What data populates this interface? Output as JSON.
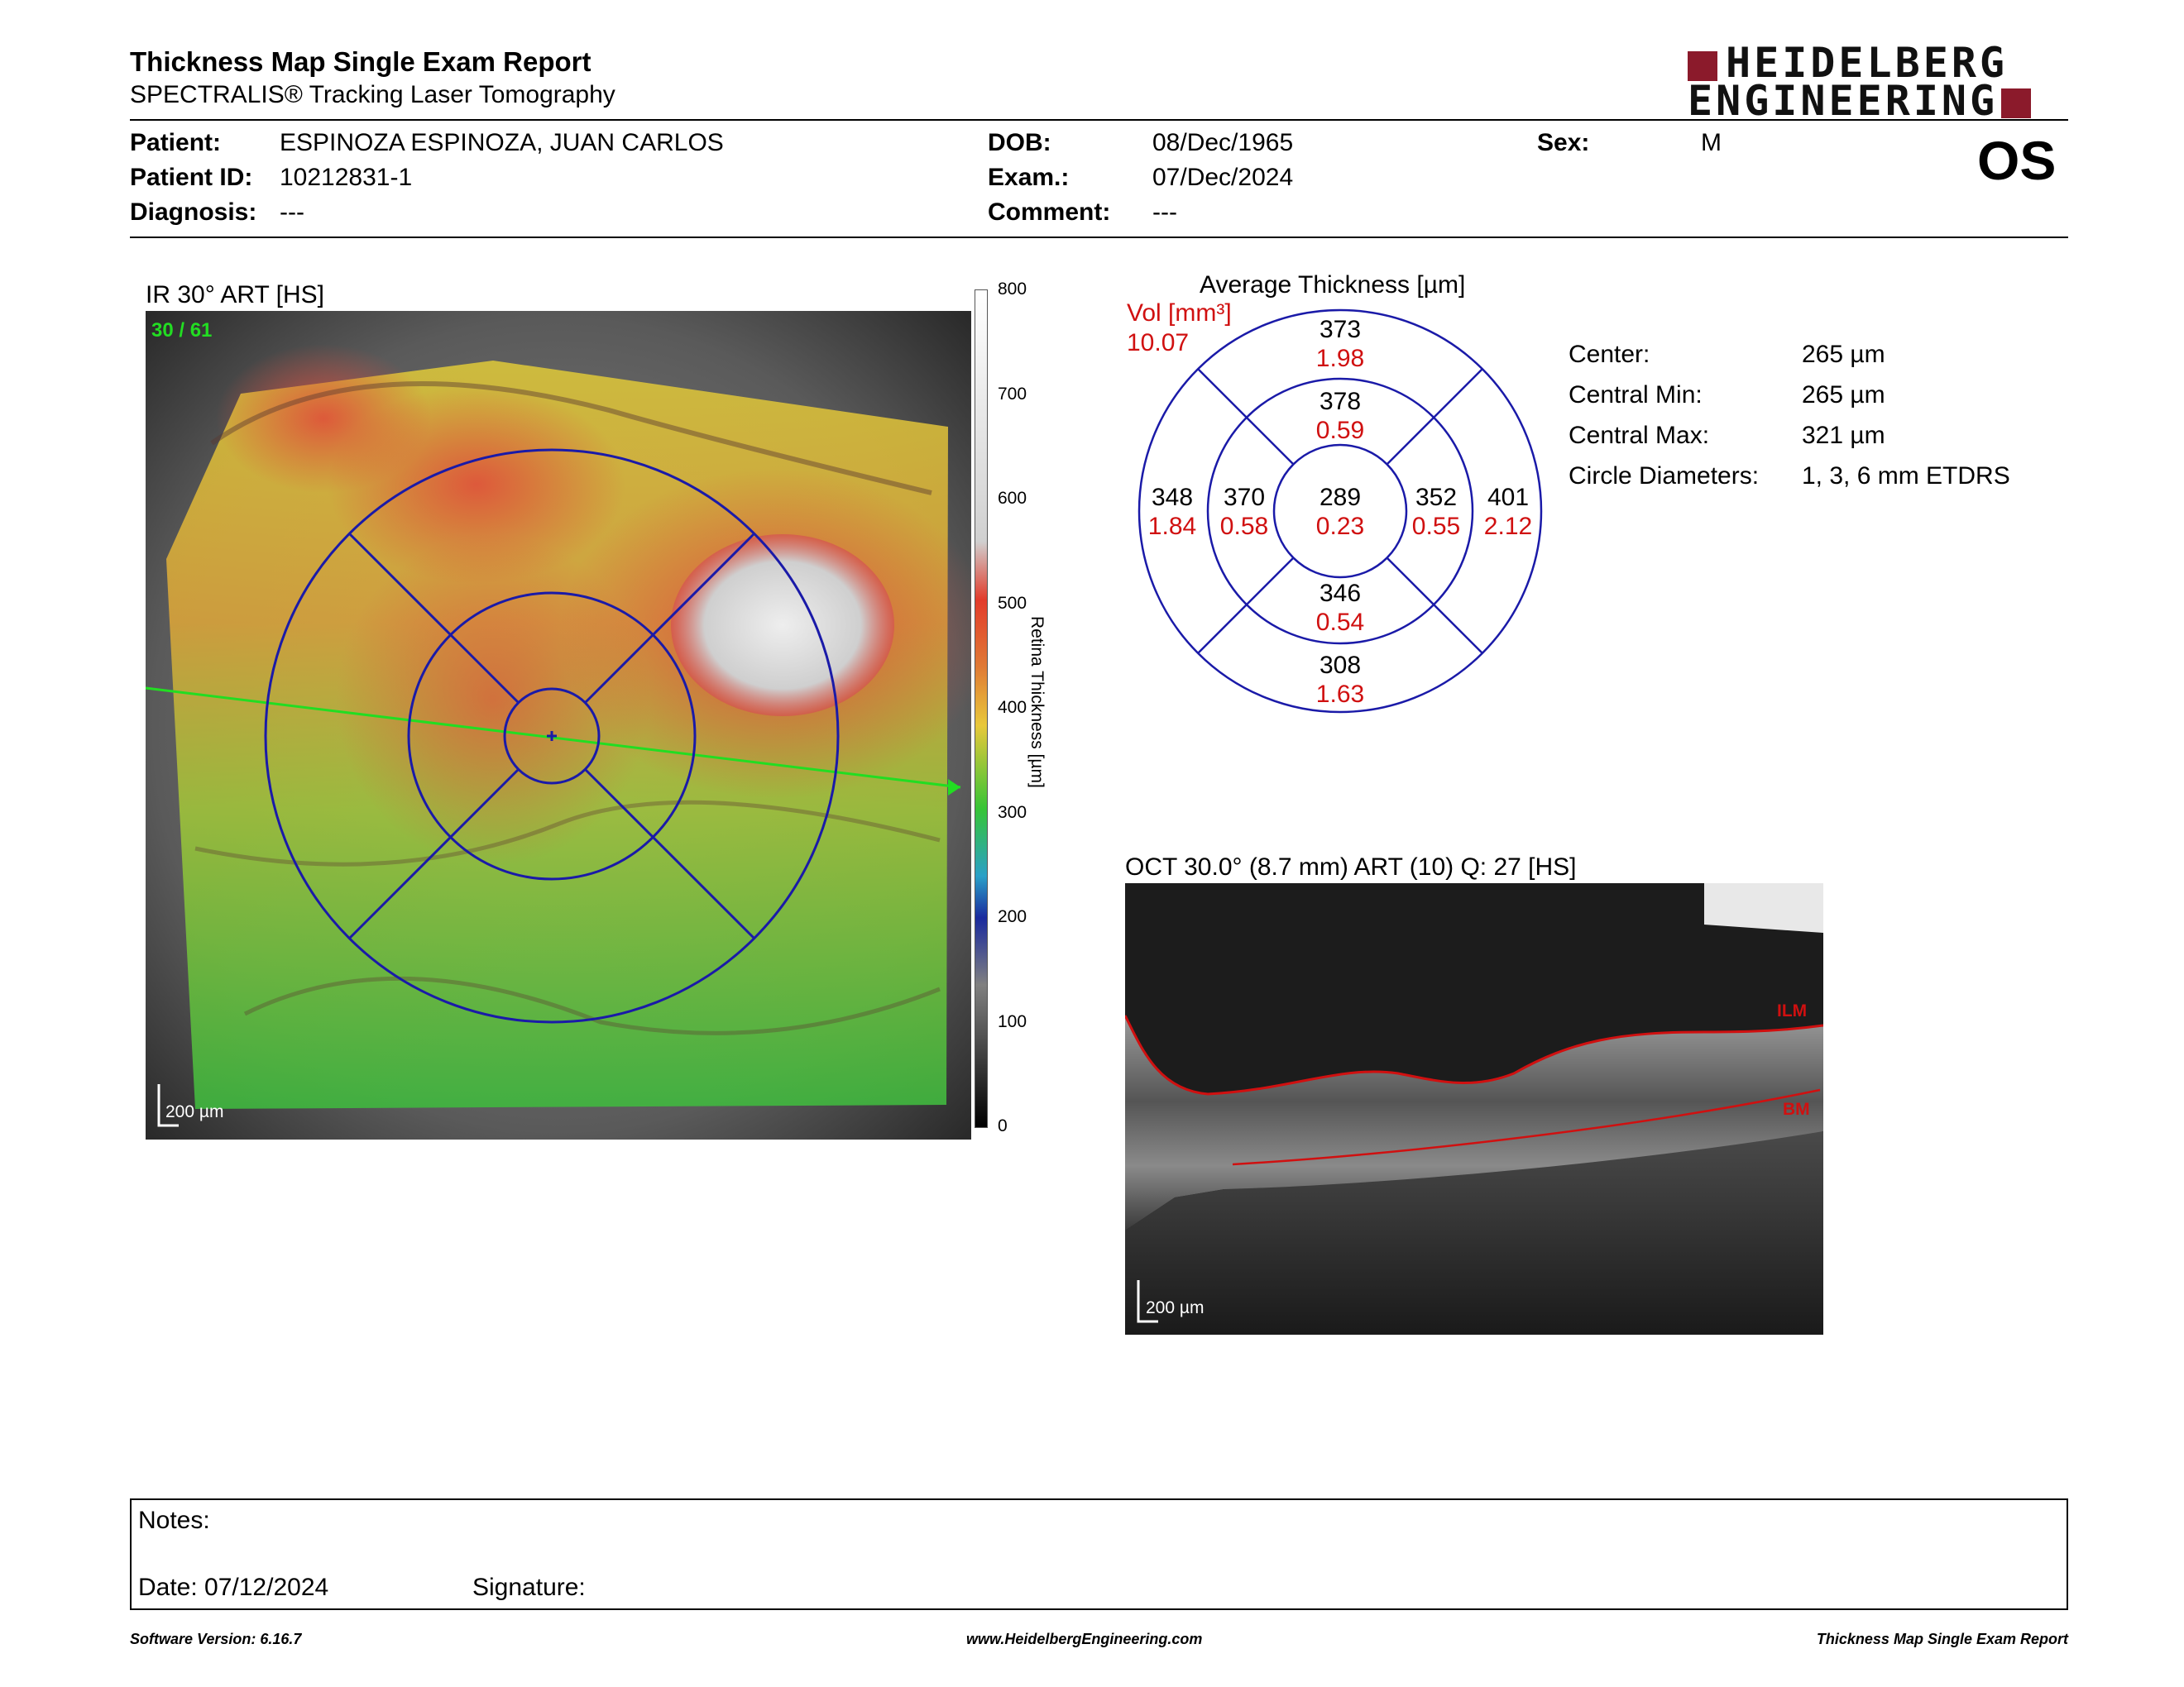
{
  "header": {
    "title": "Thickness Map Single Exam Report",
    "subtitle": "SPECTRALIS® Tracking Laser Tomography",
    "logo_line1": "HEIDELBERG",
    "logo_line2": "ENGINEERING",
    "eye": "OS"
  },
  "patient": {
    "patient_label": "Patient:",
    "patient_value": "ESPINOZA ESPINOZA, JUAN CARLOS",
    "id_label": "Patient ID:",
    "id_value": "10212831-1",
    "diagnosis_label": "Diagnosis:",
    "diagnosis_value": "---",
    "dob_label": "DOB:",
    "dob_value": "08/Dec/1965",
    "exam_label": "Exam.:",
    "exam_value": "07/Dec/2024",
    "comment_label": "Comment:",
    "comment_value": "---",
    "sex_label": "Sex:",
    "sex_value": "M"
  },
  "ir_image": {
    "title": "IR 30° ART [HS]",
    "frames": "30 / 61",
    "scale": "200 µm",
    "colorbar_ticks": [
      "800",
      "700",
      "600",
      "500",
      "400",
      "300",
      "200",
      "100",
      "0"
    ],
    "colorbar_label": "Retina Thickness [µm]"
  },
  "etdrs": {
    "title": "Average Thickness [µm]",
    "vol_label": "Vol [mm³]",
    "vol_total": "10.07",
    "outer_superior": {
      "thickness": "373",
      "volume": "1.98"
    },
    "inner_superior": {
      "thickness": "378",
      "volume": "0.59"
    },
    "outer_temporal": {
      "thickness": "348",
      "volume": "1.84"
    },
    "inner_temporal": {
      "thickness": "370",
      "volume": "0.58"
    },
    "center": {
      "thickness": "289",
      "volume": "0.23"
    },
    "inner_nasal": {
      "thickness": "352",
      "volume": "0.55"
    },
    "outer_nasal": {
      "thickness": "401",
      "volume": "2.12"
    },
    "inner_inferior": {
      "thickness": "346",
      "volume": "0.54"
    },
    "outer_inferior": {
      "thickness": "308",
      "volume": "1.63"
    }
  },
  "stats": [
    {
      "label": "Center:",
      "value": "265 µm"
    },
    {
      "label": "Central Min:",
      "value": "265 µm"
    },
    {
      "label": "Central Max:",
      "value": "321 µm"
    },
    {
      "label": "Circle Diameters:",
      "value": "1, 3, 6 mm ETDRS"
    }
  ],
  "oct_image": {
    "title": "OCT 30.0° (8.7 mm) ART (10) Q: 27 [HS]",
    "ilm_label": "ILM",
    "bm_label": "BM",
    "scale": "200 µm"
  },
  "notes": {
    "notes_label": "Notes:",
    "date_label": "Date: 07/12/2024",
    "signature_label": "Signature:"
  },
  "footer": {
    "software": "Software Version: 6.16.7",
    "website": "www.HeidelbergEngineering.com",
    "report_name": "Thickness Map Single Exam Report"
  },
  "colors": {
    "logo_red": "#8b1a2b",
    "grid_blue": "#1a1aa8",
    "volume_red": "#d01010",
    "scan_line_green": "#22dd22"
  }
}
